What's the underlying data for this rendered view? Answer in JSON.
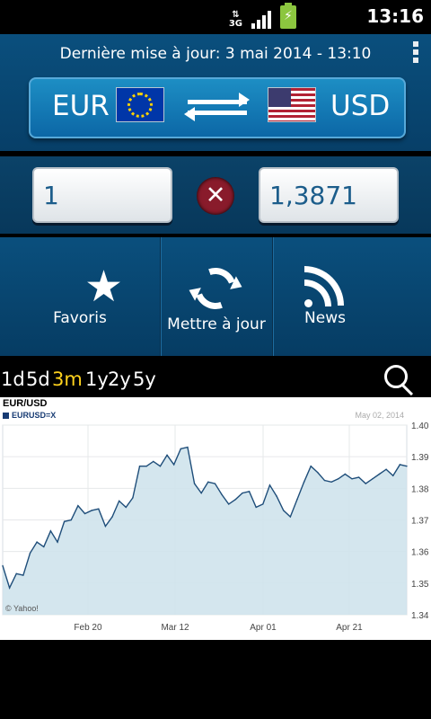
{
  "status_bar": {
    "network": "3G",
    "time": "13:16",
    "colors": {
      "battery": "#8cc63f"
    }
  },
  "header": {
    "last_update": "Dernière mise à jour: 3 mai 2014 - 13:10",
    "menu_icon": "vertical-ellipsis-icon"
  },
  "currency_pair": {
    "from": "EUR",
    "to": "USD",
    "swap_icon": "swap-arrows-icon",
    "from_flag_icon": "eu-flag-icon",
    "to_flag_icon": "us-flag-icon"
  },
  "converter": {
    "amount": "1",
    "result": "1,3871",
    "clear_icon": "clear-icon"
  },
  "actions": {
    "favorites": "Favoris",
    "refresh": "Mettre à jour",
    "news": "News",
    "favorites_icon": "star-icon",
    "refresh_icon": "refresh-icon",
    "news_icon": "rss-icon"
  },
  "ranges": {
    "items": [
      "1d",
      "5d",
      "3m",
      "1y",
      "2y",
      "5y"
    ],
    "selected": "3m",
    "search_icon": "search-icon",
    "selected_color": "#ffd21d"
  },
  "chart_data": {
    "type": "area",
    "title": "EUR/USD",
    "legend": "EURUSD=X",
    "date_label": "May 02, 2014",
    "source": "© Yahoo!",
    "x_labels": [
      "Feb 20",
      "Mar 12",
      "Apr 01",
      "Apr 21"
    ],
    "y_labels": [
      "1.40",
      "1.39",
      "1.38",
      "1.37",
      "1.36",
      "1.35",
      "1.34"
    ],
    "ylim": [
      1.34,
      1.4
    ],
    "series": [
      {
        "values": [
          1.3555,
          1.3485,
          1.353,
          1.3525,
          1.3595,
          1.363,
          1.3615,
          1.3665,
          1.363,
          1.3695,
          1.37,
          1.3745,
          1.372,
          1.373,
          1.3735,
          1.368,
          1.371,
          1.376,
          1.374,
          1.377,
          1.387,
          1.387,
          1.3885,
          1.387,
          1.3905,
          1.3875,
          1.3925,
          1.393,
          1.3815,
          1.3785,
          1.382,
          1.3815,
          1.378,
          1.375,
          1.3765,
          1.3785,
          1.379,
          1.374,
          1.375,
          1.381,
          1.3775,
          1.373,
          1.371,
          1.3765,
          1.382,
          1.387,
          1.385,
          1.3825,
          1.382,
          1.383,
          1.3845,
          1.383,
          1.3835,
          1.3815,
          1.383,
          1.3845,
          1.386,
          1.384,
          1.3875,
          1.387
        ]
      }
    ],
    "colors": {
      "line": "#1f4e7a",
      "fill": "#cfe3ec"
    }
  }
}
